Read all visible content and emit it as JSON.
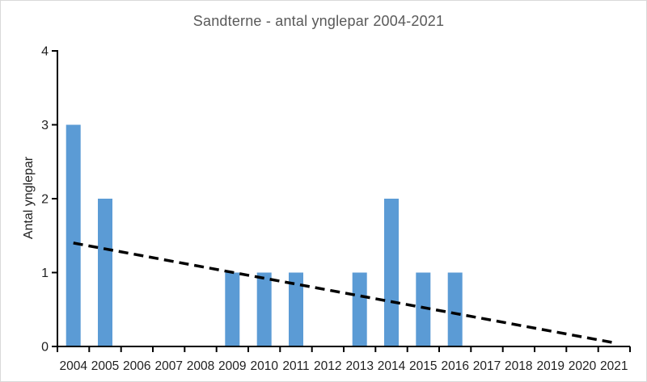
{
  "chart_data": {
    "type": "bar",
    "title": "Sandterne - antal ynglepar 2004-2021",
    "ylabel": "Antal ynglepar",
    "xlabel": "",
    "categories": [
      "2004",
      "2005",
      "2006",
      "2007",
      "2008",
      "2009",
      "2010",
      "2011",
      "2012",
      "2013",
      "2014",
      "2015",
      "2016",
      "2017",
      "2018",
      "2019",
      "2020",
      "2021"
    ],
    "values": [
      3,
      2,
      0,
      0,
      0,
      1,
      1,
      1,
      0,
      1,
      2,
      1,
      1,
      0,
      0,
      0,
      0,
      0
    ],
    "ylim": [
      0,
      4
    ],
    "yticks": [
      0,
      1,
      2,
      3,
      4
    ],
    "grid": false,
    "legend": "none",
    "trendline": {
      "type": "linear",
      "style": "dashed",
      "start_value": 1.4,
      "end_value": 0.05
    },
    "colors": {
      "bar": "#5B9BD5",
      "trendline": "#000000",
      "axis": "#000000",
      "tick_labels": "#1F1F1F",
      "title": "#595959",
      "frame_border": "#D9D9D9"
    }
  }
}
